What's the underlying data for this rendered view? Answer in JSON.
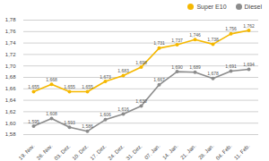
{
  "chart_data": {
    "type": "line",
    "categories": [
      "19. Nov.",
      "26. Nov.",
      "03. Dez.",
      "10. Dez.",
      "17. Dez.",
      "24. Dez.",
      "31. Dez.",
      "07. Jan.",
      "14. Jan.",
      "21. Jan.",
      "28. Jan.",
      "04. Feb.",
      "11. Feb."
    ],
    "series": [
      {
        "name": "Super E10",
        "color": "#f5b800",
        "marker": "circle",
        "line_style": "solid",
        "values": [
          1.655,
          1.668,
          1.655,
          1.655,
          1.673,
          1.683,
          1.698,
          1.731,
          1.737,
          1.746,
          1.738,
          1.756,
          1.762
        ],
        "value_labels": [
          "1,655",
          "1,668",
          "1,655",
          "1,655",
          "1,673",
          "1,683",
          "1,698",
          "1,731",
          "1,737",
          "1,746",
          "1,738",
          "1,756",
          "1,762"
        ]
      },
      {
        "name": "Diesel",
        "color": "#8c8c8c",
        "marker": "circle",
        "line_style": "solid",
        "values": [
          1.595,
          1.608,
          1.593,
          1.586,
          1.606,
          1.616,
          1.63,
          1.667,
          1.69,
          1.689,
          1.678,
          1.691,
          1.694
        ],
        "value_labels": [
          "1,595",
          "1,608",
          "1,593",
          "1,586",
          "1,606",
          "1,616",
          "1,630",
          "1,667",
          "1,690",
          "1,689",
          "1,678",
          "1,691",
          "1,694"
        ]
      }
    ],
    "ylim": [
      1.58,
      1.78
    ],
    "yticks": [
      {
        "value": 1.58,
        "label": "1,58"
      },
      {
        "value": 1.6,
        "label": "1,60"
      },
      {
        "value": 1.62,
        "label": "1,62"
      },
      {
        "value": 1.64,
        "label": "1,64"
      },
      {
        "value": 1.66,
        "label": "1,66"
      },
      {
        "value": 1.68,
        "label": "1,68"
      },
      {
        "value": 1.7,
        "label": "1,70"
      },
      {
        "value": 1.72,
        "label": "1,72"
      },
      {
        "value": 1.74,
        "label": "1,74"
      },
      {
        "value": 1.76,
        "label": "1,76"
      },
      {
        "value": 1.78,
        "label": "1,78"
      }
    ],
    "grid": true,
    "legend": "top-right",
    "data_labels": true
  }
}
